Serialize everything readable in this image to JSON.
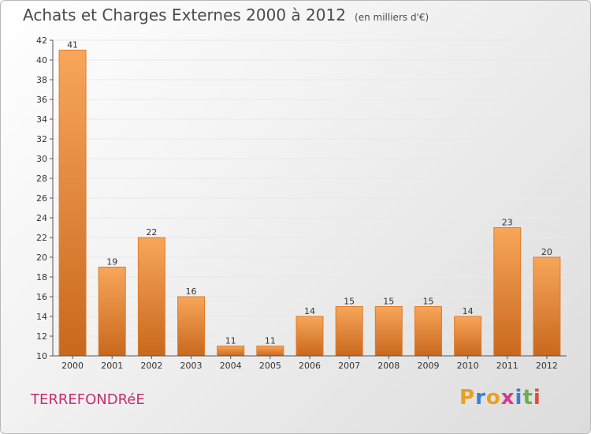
{
  "title": "Achats et Charges Externes 2000 à 2012",
  "subtitle": "(en milliers d'€)",
  "city": "TERREFONDRéE",
  "logo": {
    "letters": [
      "P",
      "r",
      "o",
      "x",
      "i",
      "t",
      "i"
    ],
    "colors": [
      "#e8a020",
      "#3a7fd0",
      "#e8a020",
      "#d83a8a",
      "#3a7fd0",
      "#6ab04c",
      "#e84a3a"
    ]
  },
  "colors": {
    "bar_light": "#f7a65a",
    "bar_dark": "#c8681e",
    "bar_edge": "#e07b2a",
    "grid": "#e9e9e9",
    "axis": "#555555",
    "city": "#c0306e"
  },
  "chart_data": {
    "type": "bar",
    "categories": [
      "2000",
      "2001",
      "2002",
      "2003",
      "2004",
      "2005",
      "2006",
      "2007",
      "2008",
      "2009",
      "2010",
      "2011",
      "2012"
    ],
    "values": [
      41,
      19,
      22,
      16,
      11,
      11,
      14,
      15,
      15,
      15,
      14,
      23,
      20
    ],
    "ylim": [
      10,
      42
    ],
    "yticks": [
      10,
      12,
      14,
      16,
      18,
      20,
      22,
      24,
      26,
      28,
      30,
      32,
      34,
      36,
      38,
      40,
      42
    ],
    "ytick_labels": [
      "10",
      "12",
      "14",
      "16",
      "18",
      "20",
      "22",
      "24",
      "26",
      "28",
      "30",
      "32",
      "34",
      "36",
      "38",
      "40",
      "42"
    ],
    "data_labels": [
      "41",
      "19",
      "22",
      "16",
      "11",
      "11",
      "14",
      "15",
      "15",
      "15",
      "14",
      "23",
      "20"
    ],
    "grid": true
  }
}
